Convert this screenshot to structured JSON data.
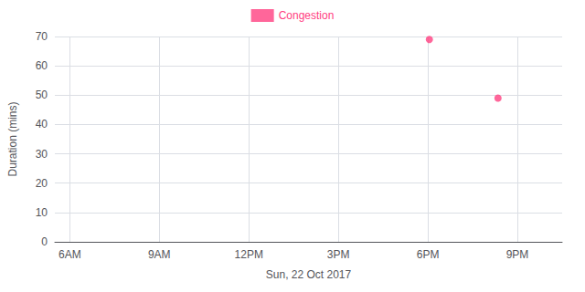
{
  "chart_data": {
    "type": "scatter",
    "xlabel": "Sun, 22 Oct 2017",
    "ylabel": "Duration (mins)",
    "x": [
      18.05,
      20.35
    ],
    "series": [
      {
        "name": "Congestion",
        "color": "#FF4081",
        "values": [
          69,
          49
        ]
      }
    ],
    "xlim": [
      5.5,
      22.5
    ],
    "xticks": [
      {
        "value": 6,
        "label": "6AM"
      },
      {
        "value": 9,
        "label": "9AM"
      },
      {
        "value": 12,
        "label": "12PM"
      },
      {
        "value": 15,
        "label": "3PM"
      },
      {
        "value": 18,
        "label": "6PM"
      },
      {
        "value": 21,
        "label": "9PM"
      }
    ],
    "ylim": [
      0,
      70
    ],
    "yticks": [
      0,
      10,
      20,
      30,
      40,
      50,
      60,
      70
    ],
    "grid": true,
    "legend": "top"
  }
}
